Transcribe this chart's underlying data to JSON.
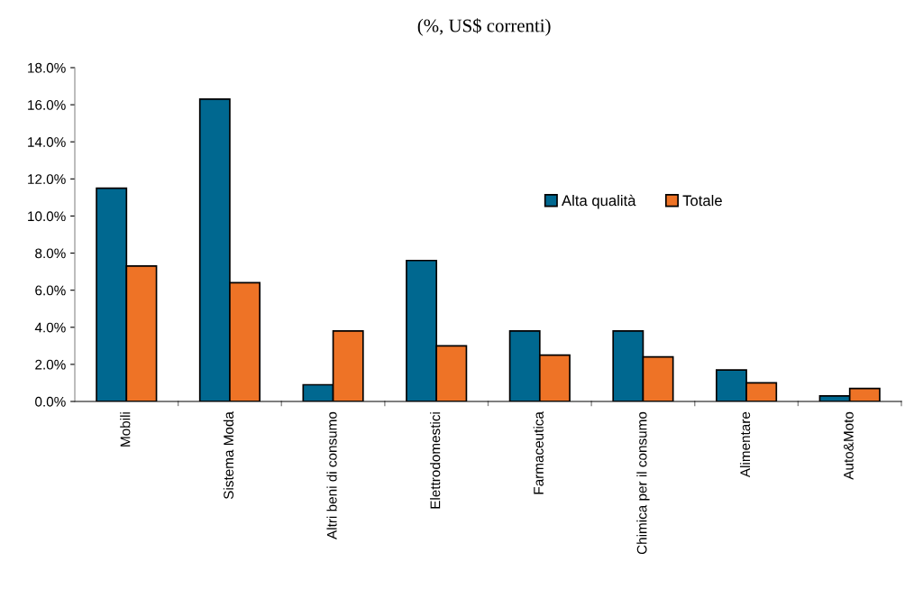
{
  "chart_data": {
    "type": "bar",
    "title": "(%, US$ correnti)",
    "categories": [
      "Mobili",
      "Sistema Moda",
      "Altri beni di consumo",
      "Elettrodomestici",
      "Farmaceutica",
      "Chimica per il consumo",
      "Alimentare",
      "Auto&Moto"
    ],
    "series": [
      {
        "name": "Alta qualità",
        "color": "#006890",
        "values": [
          11.5,
          16.3,
          0.9,
          7.6,
          3.8,
          3.8,
          1.7,
          0.3
        ]
      },
      {
        "name": "Totale",
        "color": "#ee7326",
        "values": [
          7.3,
          6.4,
          3.8,
          3.0,
          2.5,
          2.4,
          1.0,
          0.7
        ]
      }
    ],
    "ylim": [
      0,
      18
    ],
    "yticks": [
      {
        "value": 0,
        "label": "0.0%"
      },
      {
        "value": 2,
        "label": "2.0%"
      },
      {
        "value": 4,
        "label": "4.0%"
      },
      {
        "value": 6,
        "label": "6.0%"
      },
      {
        "value": 8,
        "label": "8.0%"
      },
      {
        "value": 10,
        "label": "10.0%"
      },
      {
        "value": 12,
        "label": "12.0%"
      },
      {
        "value": 14,
        "label": "14.0%"
      },
      {
        "value": 16,
        "label": "16.0%"
      },
      {
        "value": 18,
        "label": "18.0%"
      }
    ],
    "grid": false,
    "legend": "top right"
  }
}
